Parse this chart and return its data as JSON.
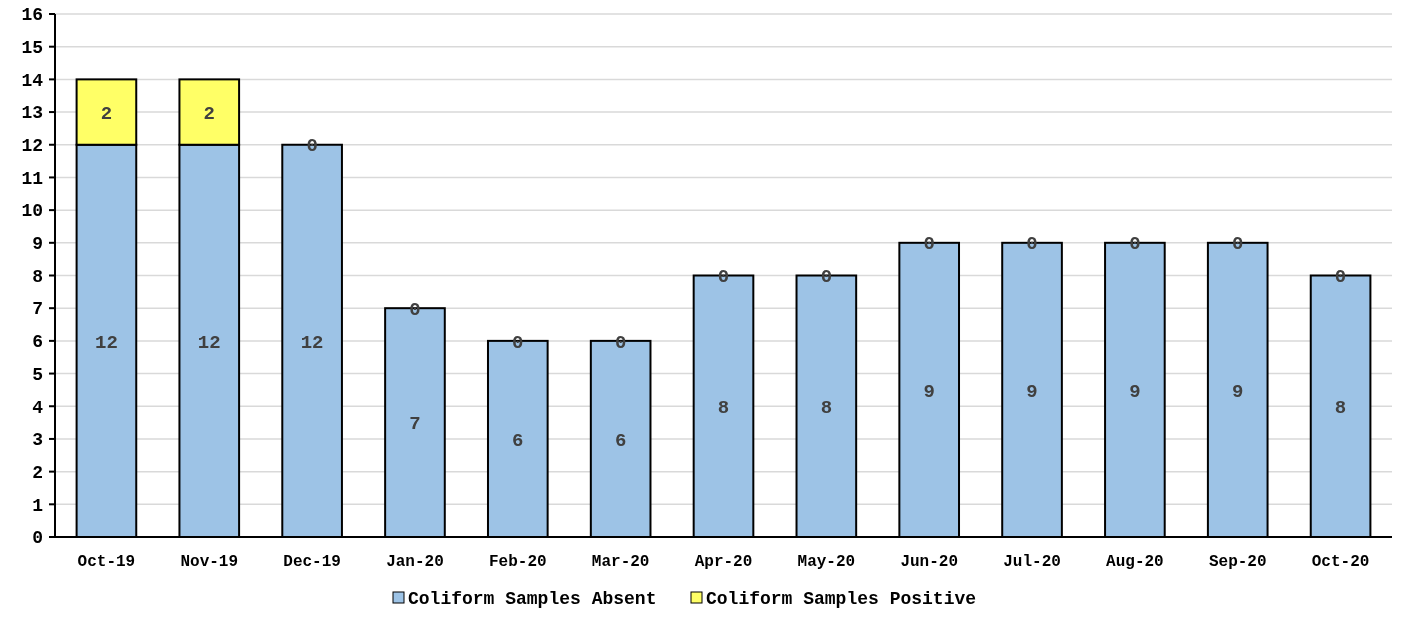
{
  "chart_data": {
    "type": "bar",
    "stacked": true,
    "data_labels": true,
    "grid": "y",
    "legend": "bottom",
    "categories": [
      "Oct-19",
      "Nov-19",
      "Dec-19",
      "Jan-20",
      "Feb-20",
      "Mar-20",
      "Apr-20",
      "May-20",
      "Jun-20",
      "Jul-20",
      "Aug-20",
      "Sep-20",
      "Oct-20"
    ],
    "series": [
      {
        "name": "Coliform Samples Absent",
        "color": "#9dc3e6",
        "values": [
          12,
          12,
          12,
          7,
          6,
          6,
          8,
          8,
          9,
          9,
          9,
          9,
          8
        ]
      },
      {
        "name": "Coliform Samples Positive",
        "color": "#ffff66",
        "values": [
          2,
          2,
          0,
          0,
          0,
          0,
          0,
          0,
          0,
          0,
          0,
          0,
          0
        ]
      }
    ],
    "ylim": [
      0,
      16
    ],
    "yticks": [
      0,
      1,
      2,
      3,
      4,
      5,
      6,
      7,
      8,
      9,
      10,
      11,
      12,
      13,
      14,
      15,
      16
    ]
  }
}
